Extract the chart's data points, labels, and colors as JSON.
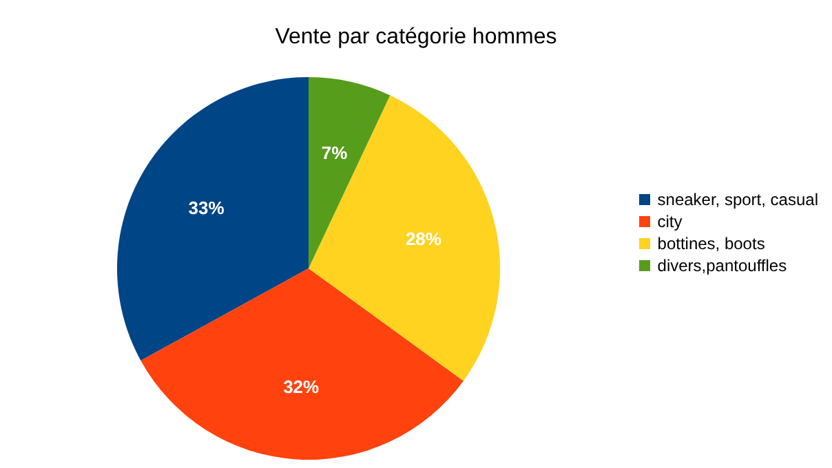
{
  "chart_data": {
    "type": "pie",
    "title": "Vente par catégorie hommes",
    "categories": [
      "sneaker, sport, casual",
      "city",
      "bottines, boots",
      "divers,pantouffles"
    ],
    "values": [
      33,
      32,
      28,
      7
    ],
    "colors": [
      "#004586",
      "#ff420e",
      "#ffd320",
      "#579d1c"
    ],
    "value_labels": [
      "33%",
      "32%",
      "28%",
      "7%"
    ],
    "legend": "right"
  }
}
